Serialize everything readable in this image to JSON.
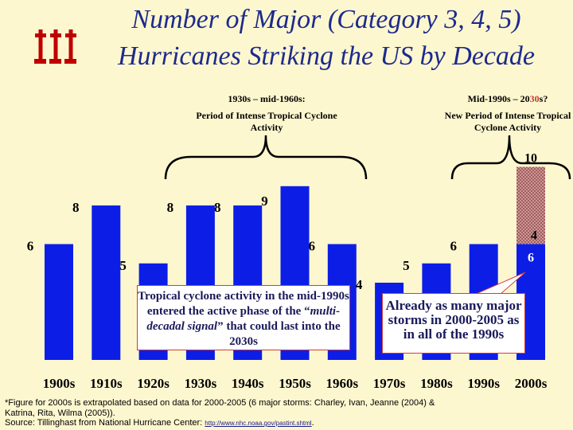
{
  "title": {
    "line1": "Number of Major (Category 3, 4, 5)",
    "line2": "Hurricanes Striking the US by Decade"
  },
  "notes": {
    "left_period": "1930s – mid-1960s:",
    "left_desc": "Period of Intense Tropical Cyclone Activity",
    "right_period_prefix": "Mid-1990s – 20",
    "right_period_hl": "30",
    "right_period_suffix": "s?",
    "right_desc": "New Period of Intense Tropical Cyclone Activity"
  },
  "callouts": {
    "left_pre": "Tropical cyclone activity in the mid-1990s entered the active phase of the “",
    "left_em": "multi-decadal signal",
    "left_post": "” that could last into the 2030s",
    "right": "Already as many major storms in 2000-2005 as in all of the 1990s"
  },
  "chart_data": {
    "type": "bar",
    "categories": [
      "1900s",
      "1910s",
      "1920s",
      "1930s",
      "1940s",
      "1950s",
      "1960s",
      "1970s",
      "1980s",
      "1990s",
      "2000s"
    ],
    "values": [
      6,
      8,
      5,
      8,
      8,
      9,
      6,
      4,
      5,
      6,
      6
    ],
    "extrapolated_segment": {
      "category": "2000s",
      "value": 4,
      "total_label": 10
    },
    "ylim": [
      0,
      10.6
    ],
    "colors": {
      "bar": "#0c1ee6",
      "extrapolated": "#d9a0a0",
      "labels": "#000000",
      "bar_inner_label": "#ffffff"
    }
  },
  "footnote": {
    "line1": "*Figure for 2000s is extrapolated based on data for 2000-2005 (6 major storms: Charley, Ivan, Jeanne (2004) &",
    "line2": " Katrina, Rita, Wilma (2005)).",
    "source_prefix": "Source: Tillinghast from National Hurricane Center: ",
    "source_link": "http://www.nhc.noaa.gov/pastint.shtml",
    "source_suffix": "."
  }
}
